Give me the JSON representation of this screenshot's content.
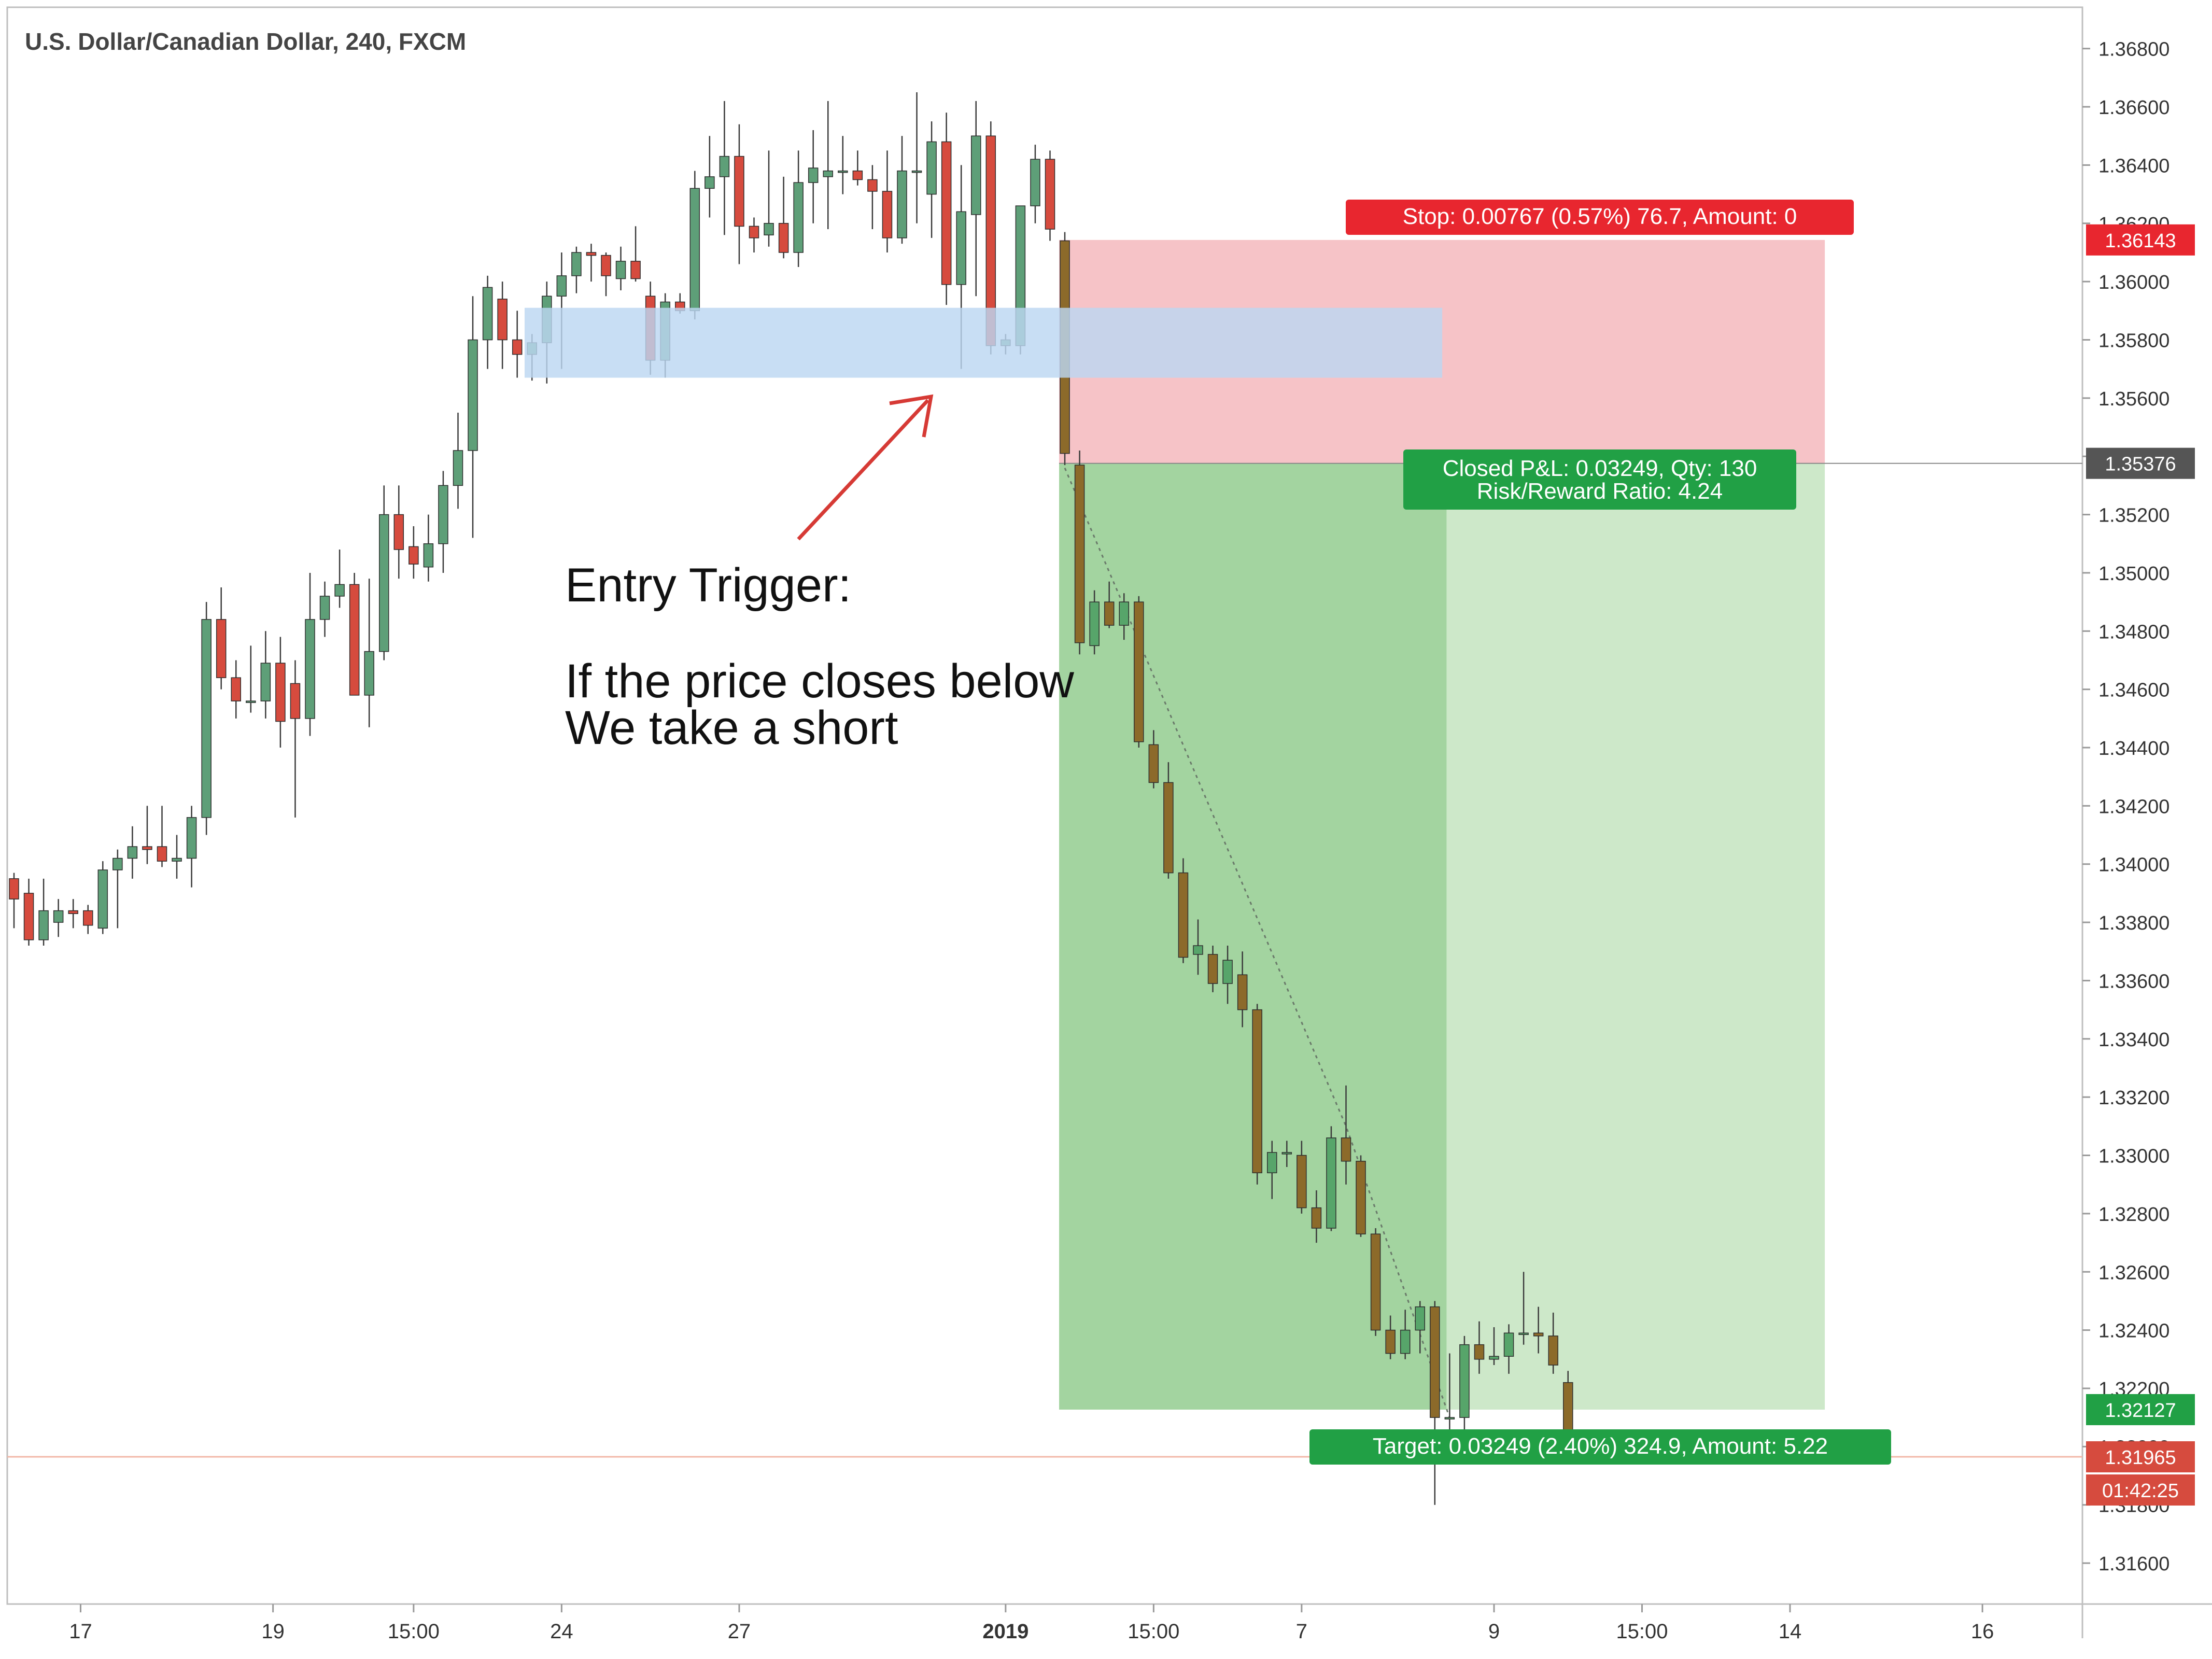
{
  "chart_title": "U.S. Dollar/Canadian Dollar, 240, FXCM",
  "colors": {
    "up": "#5e9f78",
    "down": "#d64b3e",
    "trade_candle": "#8c6a2a",
    "stop_zone": "#f4b9bd",
    "target_zone": "#a3d4a0",
    "target_zone_light": "#cde8c9",
    "entry_zone": "#bcd7f1",
    "stop_badge": "#e8262f",
    "target_badge": "#21a045",
    "current_price": "#d64b3e",
    "entry_price_badge": "#555555",
    "arrow": "#d63a35",
    "grid_text": "#333333"
  },
  "annotation": {
    "line1": "Entry Trigger:",
    "line2": "If the price closes below",
    "line3": "We take a short"
  },
  "stop_label": "Stop: 0.00767 (0.57%) 76.7, Amount: 0",
  "pnl_label_1": "Closed P&L: 0.03249, Qty: 130",
  "pnl_label_2": "Risk/Reward Ratio: 4.24",
  "target_label": "Target: 0.03249 (2.40%) 324.9, Amount: 5.22",
  "price_tags": {
    "stop": "1.36143",
    "entry": "1.35376",
    "target": "1.32127",
    "current": "1.31965",
    "countdown": "01:42:25"
  },
  "chart_data": {
    "type": "candlestick",
    "title": "U.S. Dollar/Canadian Dollar, 240, FXCM",
    "symbol": "USDCAD",
    "timeframe": "240",
    "source": "FXCM",
    "ylim": [
      1.3152,
      1.3686
    ],
    "y_ticks": [
      "1.31600",
      "1.31800",
      "1.32000",
      "1.32200",
      "1.32400",
      "1.32600",
      "1.32800",
      "1.33000",
      "1.33200",
      "1.33400",
      "1.33600",
      "1.33800",
      "1.34000",
      "1.34200",
      "1.34400",
      "1.34600",
      "1.34800",
      "1.35000",
      "1.35200",
      "1.35400",
      "1.35600",
      "1.35800",
      "1.36000",
      "1.36200",
      "1.36400",
      "1.36600",
      "1.36800"
    ],
    "x_ticks": [
      {
        "label": "17",
        "bar": 4.5
      },
      {
        "label": "19",
        "bar": 17.5
      },
      {
        "label": "15:00",
        "bar": 27
      },
      {
        "label": "24",
        "bar": 37
      },
      {
        "label": "27",
        "bar": 49
      },
      {
        "label": "2019",
        "bar": 67
      },
      {
        "label": "15:00",
        "bar": 77
      },
      {
        "label": "7",
        "bar": 87
      },
      {
        "label": "9",
        "bar": 100
      },
      {
        "label": "15:00",
        "bar": 110
      },
      {
        "label": "14",
        "bar": 120
      },
      {
        "label": "16",
        "bar": 133
      }
    ],
    "candles": [
      [
        1.3395,
        1.3397,
        1.3378,
        1.3388
      ],
      [
        1.339,
        1.3395,
        1.3372,
        1.3374
      ],
      [
        1.3374,
        1.3395,
        1.3372,
        1.3384
      ],
      [
        1.338,
        1.3388,
        1.3375,
        1.3384
      ],
      [
        1.3384,
        1.3388,
        1.3378,
        1.3383
      ],
      [
        1.3384,
        1.3386,
        1.3376,
        1.3379
      ],
      [
        1.3378,
        1.3401,
        1.3376,
        1.3398
      ],
      [
        1.3398,
        1.3405,
        1.3378,
        1.3402
      ],
      [
        1.3402,
        1.3413,
        1.3395,
        1.3406
      ],
      [
        1.3406,
        1.342,
        1.34,
        1.3405
      ],
      [
        1.3406,
        1.342,
        1.3399,
        1.3401
      ],
      [
        1.3401,
        1.341,
        1.3395,
        1.3402
      ],
      [
        1.3402,
        1.342,
        1.3392,
        1.3416
      ],
      [
        1.3416,
        1.349,
        1.341,
        1.3484
      ],
      [
        1.3484,
        1.3495,
        1.346,
        1.3464
      ],
      [
        1.3464,
        1.347,
        1.345,
        1.3456
      ],
      [
        1.3456,
        1.3475,
        1.3452,
        1.3456
      ],
      [
        1.3456,
        1.348,
        1.345,
        1.3469
      ],
      [
        1.3469,
        1.3478,
        1.344,
        1.3449
      ],
      [
        1.3462,
        1.347,
        1.3416,
        1.345
      ],
      [
        1.345,
        1.35,
        1.3444,
        1.3484
      ],
      [
        1.3484,
        1.3497,
        1.3478,
        1.3492
      ],
      [
        1.3492,
        1.3508,
        1.3488,
        1.3496
      ],
      [
        1.3496,
        1.35,
        1.346,
        1.3458
      ],
      [
        1.3458,
        1.3498,
        1.3447,
        1.3473
      ],
      [
        1.3473,
        1.353,
        1.347,
        1.352
      ],
      [
        1.352,
        1.353,
        1.3498,
        1.3508
      ],
      [
        1.3509,
        1.3516,
        1.3498,
        1.3503
      ],
      [
        1.3502,
        1.352,
        1.3497,
        1.351
      ],
      [
        1.351,
        1.3535,
        1.35,
        1.353
      ],
      [
        1.353,
        1.3555,
        1.3522,
        1.3542
      ],
      [
        1.3542,
        1.3595,
        1.3512,
        1.358
      ],
      [
        1.358,
        1.3602,
        1.357,
        1.3598
      ],
      [
        1.3594,
        1.36,
        1.357,
        1.358
      ],
      [
        1.358,
        1.359,
        1.3567,
        1.3575
      ],
      [
        1.3575,
        1.3582,
        1.3566,
        1.3579
      ],
      [
        1.3579,
        1.36,
        1.3565,
        1.3595
      ],
      [
        1.3595,
        1.361,
        1.357,
        1.3602
      ],
      [
        1.3602,
        1.3612,
        1.3596,
        1.361
      ],
      [
        1.361,
        1.3613,
        1.36,
        1.3609
      ],
      [
        1.3609,
        1.361,
        1.3595,
        1.3602
      ],
      [
        1.3601,
        1.3612,
        1.3597,
        1.3607
      ],
      [
        1.3607,
        1.3619,
        1.36,
        1.3601
      ],
      [
        1.3595,
        1.36,
        1.3568,
        1.3573
      ],
      [
        1.3573,
        1.3596,
        1.3567,
        1.3593
      ],
      [
        1.3593,
        1.3596,
        1.3589,
        1.359
      ],
      [
        1.359,
        1.3638,
        1.3587,
        1.3632
      ],
      [
        1.3632,
        1.365,
        1.3622,
        1.3636
      ],
      [
        1.3636,
        1.3662,
        1.3616,
        1.3643
      ],
      [
        1.3643,
        1.3654,
        1.3606,
        1.3619
      ],
      [
        1.3619,
        1.3622,
        1.361,
        1.3615
      ],
      [
        1.3616,
        1.3645,
        1.3612,
        1.362
      ],
      [
        1.362,
        1.3636,
        1.3608,
        1.361
      ],
      [
        1.361,
        1.3645,
        1.3605,
        1.3634
      ],
      [
        1.3634,
        1.3652,
        1.362,
        1.3639
      ],
      [
        1.3636,
        1.3662,
        1.3618,
        1.3638
      ],
      [
        1.3638,
        1.365,
        1.363,
        1.3638
      ],
      [
        1.3638,
        1.3645,
        1.3633,
        1.3635
      ],
      [
        1.3635,
        1.364,
        1.3618,
        1.3631
      ],
      [
        1.3631,
        1.3645,
        1.361,
        1.3615
      ],
      [
        1.3615,
        1.365,
        1.3613,
        1.3638
      ],
      [
        1.3638,
        1.3665,
        1.362,
        1.3638
      ],
      [
        1.363,
        1.3655,
        1.3615,
        1.3648
      ],
      [
        1.3648,
        1.3658,
        1.3592,
        1.3599
      ],
      [
        1.3599,
        1.364,
        1.357,
        1.3624
      ],
      [
        1.3623,
        1.3662,
        1.3595,
        1.365
      ],
      [
        1.365,
        1.3655,
        1.3575,
        1.3578
      ],
      [
        1.3578,
        1.3582,
        1.3575,
        1.358
      ],
      [
        1.3578,
        1.3626,
        1.3575,
        1.3626
      ],
      [
        1.3626,
        1.3647,
        1.362,
        1.3642
      ],
      [
        1.3642,
        1.3645,
        1.3614,
        1.3618
      ],
      [
        1.3614,
        1.3617,
        1.3537,
        1.3541
      ],
      [
        1.3537,
        1.3542,
        1.3472,
        1.3476
      ],
      [
        1.3475,
        1.3494,
        1.3472,
        1.349
      ],
      [
        1.349,
        1.3497,
        1.3481,
        1.3482
      ],
      [
        1.3482,
        1.3493,
        1.3477,
        1.349
      ],
      [
        1.349,
        1.3492,
        1.344,
        1.3442
      ],
      [
        1.3441,
        1.3446,
        1.3426,
        1.3428
      ],
      [
        1.3428,
        1.3435,
        1.3395,
        1.3397
      ],
      [
        1.3397,
        1.3402,
        1.3366,
        1.3368
      ],
      [
        1.3369,
        1.3381,
        1.3362,
        1.3372
      ],
      [
        1.3369,
        1.3372,
        1.3356,
        1.3359
      ],
      [
        1.3359,
        1.3372,
        1.3352,
        1.3367
      ],
      [
        1.3362,
        1.337,
        1.3344,
        1.335
      ],
      [
        1.335,
        1.3352,
        1.329,
        1.3294
      ],
      [
        1.3294,
        1.3305,
        1.3285,
        1.3301
      ],
      [
        1.3301,
        1.3305,
        1.3296,
        1.3301
      ],
      [
        1.33,
        1.3305,
        1.328,
        1.3282
      ],
      [
        1.3282,
        1.3288,
        1.327,
        1.3275
      ],
      [
        1.3275,
        1.331,
        1.3274,
        1.3306
      ],
      [
        1.3306,
        1.3324,
        1.329,
        1.3298
      ],
      [
        1.3298,
        1.33,
        1.3272,
        1.3273
      ],
      [
        1.3273,
        1.3275,
        1.3238,
        1.324
      ],
      [
        1.324,
        1.3245,
        1.323,
        1.3232
      ],
      [
        1.3232,
        1.3247,
        1.323,
        1.324
      ],
      [
        1.324,
        1.325,
        1.3232,
        1.3248
      ],
      [
        1.3248,
        1.325,
        1.318,
        1.321
      ],
      [
        1.321,
        1.3232,
        1.3202,
        1.321
      ],
      [
        1.321,
        1.3238,
        1.3205,
        1.3235
      ],
      [
        1.3235,
        1.3243,
        1.3225,
        1.323
      ],
      [
        1.323,
        1.3241,
        1.3228,
        1.3231
      ],
      [
        1.3231,
        1.3242,
        1.3225,
        1.3239
      ],
      [
        1.3239,
        1.326,
        1.3235,
        1.3239
      ],
      [
        1.3239,
        1.3248,
        1.3232,
        1.3238
      ],
      [
        1.3238,
        1.3246,
        1.3225,
        1.3228
      ],
      [
        1.3222,
        1.3226,
        1.3196,
        1.3197
      ]
    ],
    "trade_bar_range": [
      71,
      105
    ],
    "entry_zone": {
      "price_low": 1.3567,
      "price_high": 1.3591,
      "bar_start": 34.5,
      "bar_end": 96.5
    },
    "position": {
      "side": "short",
      "entry": 1.35376,
      "stop": 1.36143,
      "target": 1.32127,
      "bar_start": 71,
      "bar_end": 122,
      "split_bar": 96.8
    },
    "current_price": 1.31965
  }
}
